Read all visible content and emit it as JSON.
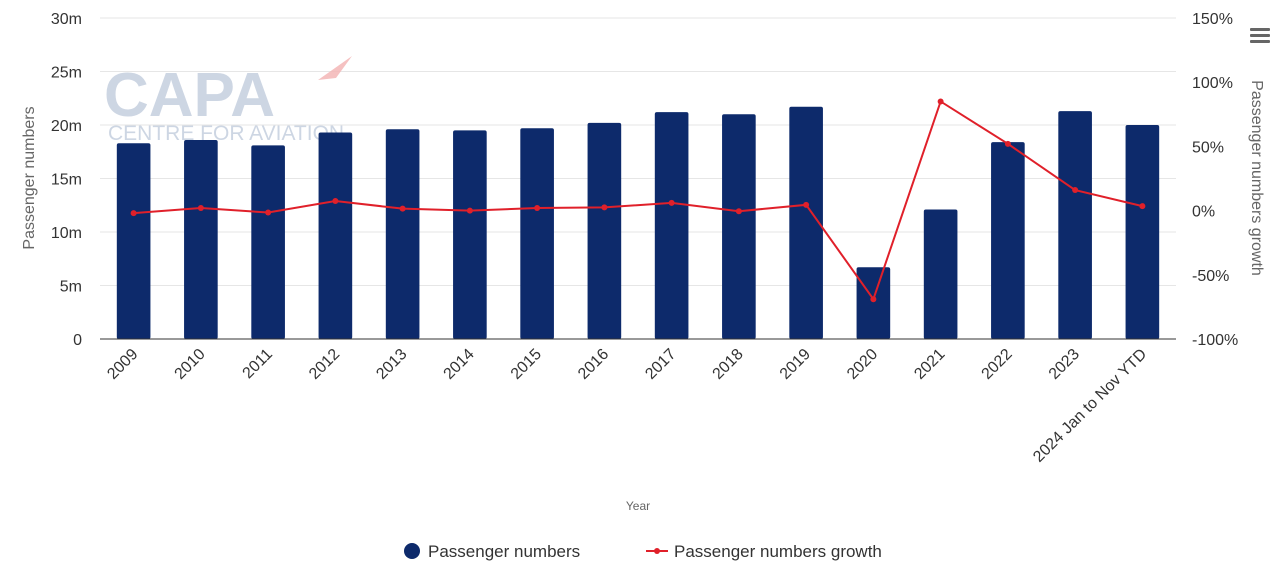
{
  "chart_data": {
    "type": "bar",
    "categories": [
      "2009",
      "2010",
      "2011",
      "2012",
      "2013",
      "2014",
      "2015",
      "2016",
      "2017",
      "2018",
      "2019",
      "2020",
      "2021",
      "2022",
      "2023",
      "2024 Jan to Nov YTD"
    ],
    "series": [
      {
        "name": "Passenger numbers",
        "type": "bar",
        "axis": "left",
        "color": "#0d2a6b",
        "values": [
          18.3,
          18.6,
          18.1,
          19.3,
          19.6,
          19.5,
          19.7,
          20.2,
          21.2,
          21.0,
          21.7,
          6.7,
          12.1,
          18.4,
          21.3,
          20.0
        ]
      },
      {
        "name": "Passenger numbers growth",
        "type": "line",
        "axis": "right",
        "color": "#e0202a",
        "values": [
          -2.0,
          2.0,
          -1.5,
          7.5,
          1.5,
          0.0,
          2.0,
          2.5,
          6.0,
          -0.5,
          4.5,
          -69.0,
          85.0,
          52.0,
          16.0,
          3.5
        ]
      }
    ],
    "left_axis": {
      "title": "Passenger numbers",
      "ylim": [
        0,
        30
      ],
      "ticks": [
        0,
        5,
        10,
        15,
        20,
        25,
        30
      ],
      "tick_labels": [
        "0",
        "5m",
        "10m",
        "15m",
        "20m",
        "25m",
        "30m"
      ]
    },
    "right_axis": {
      "title": "Passenger numbers growth",
      "ylim": [
        -100,
        150
      ],
      "ticks": [
        -100,
        -50,
        0,
        50,
        100,
        150
      ],
      "tick_labels": [
        "-100%",
        "-50%",
        "0%",
        "50%",
        "100%",
        "150%"
      ]
    },
    "xlabel": "Year",
    "grid": true,
    "legend_position": "bottom-center",
    "watermark": {
      "line1": "CAPA",
      "line2": "CENTRE FOR AVIATION"
    }
  }
}
